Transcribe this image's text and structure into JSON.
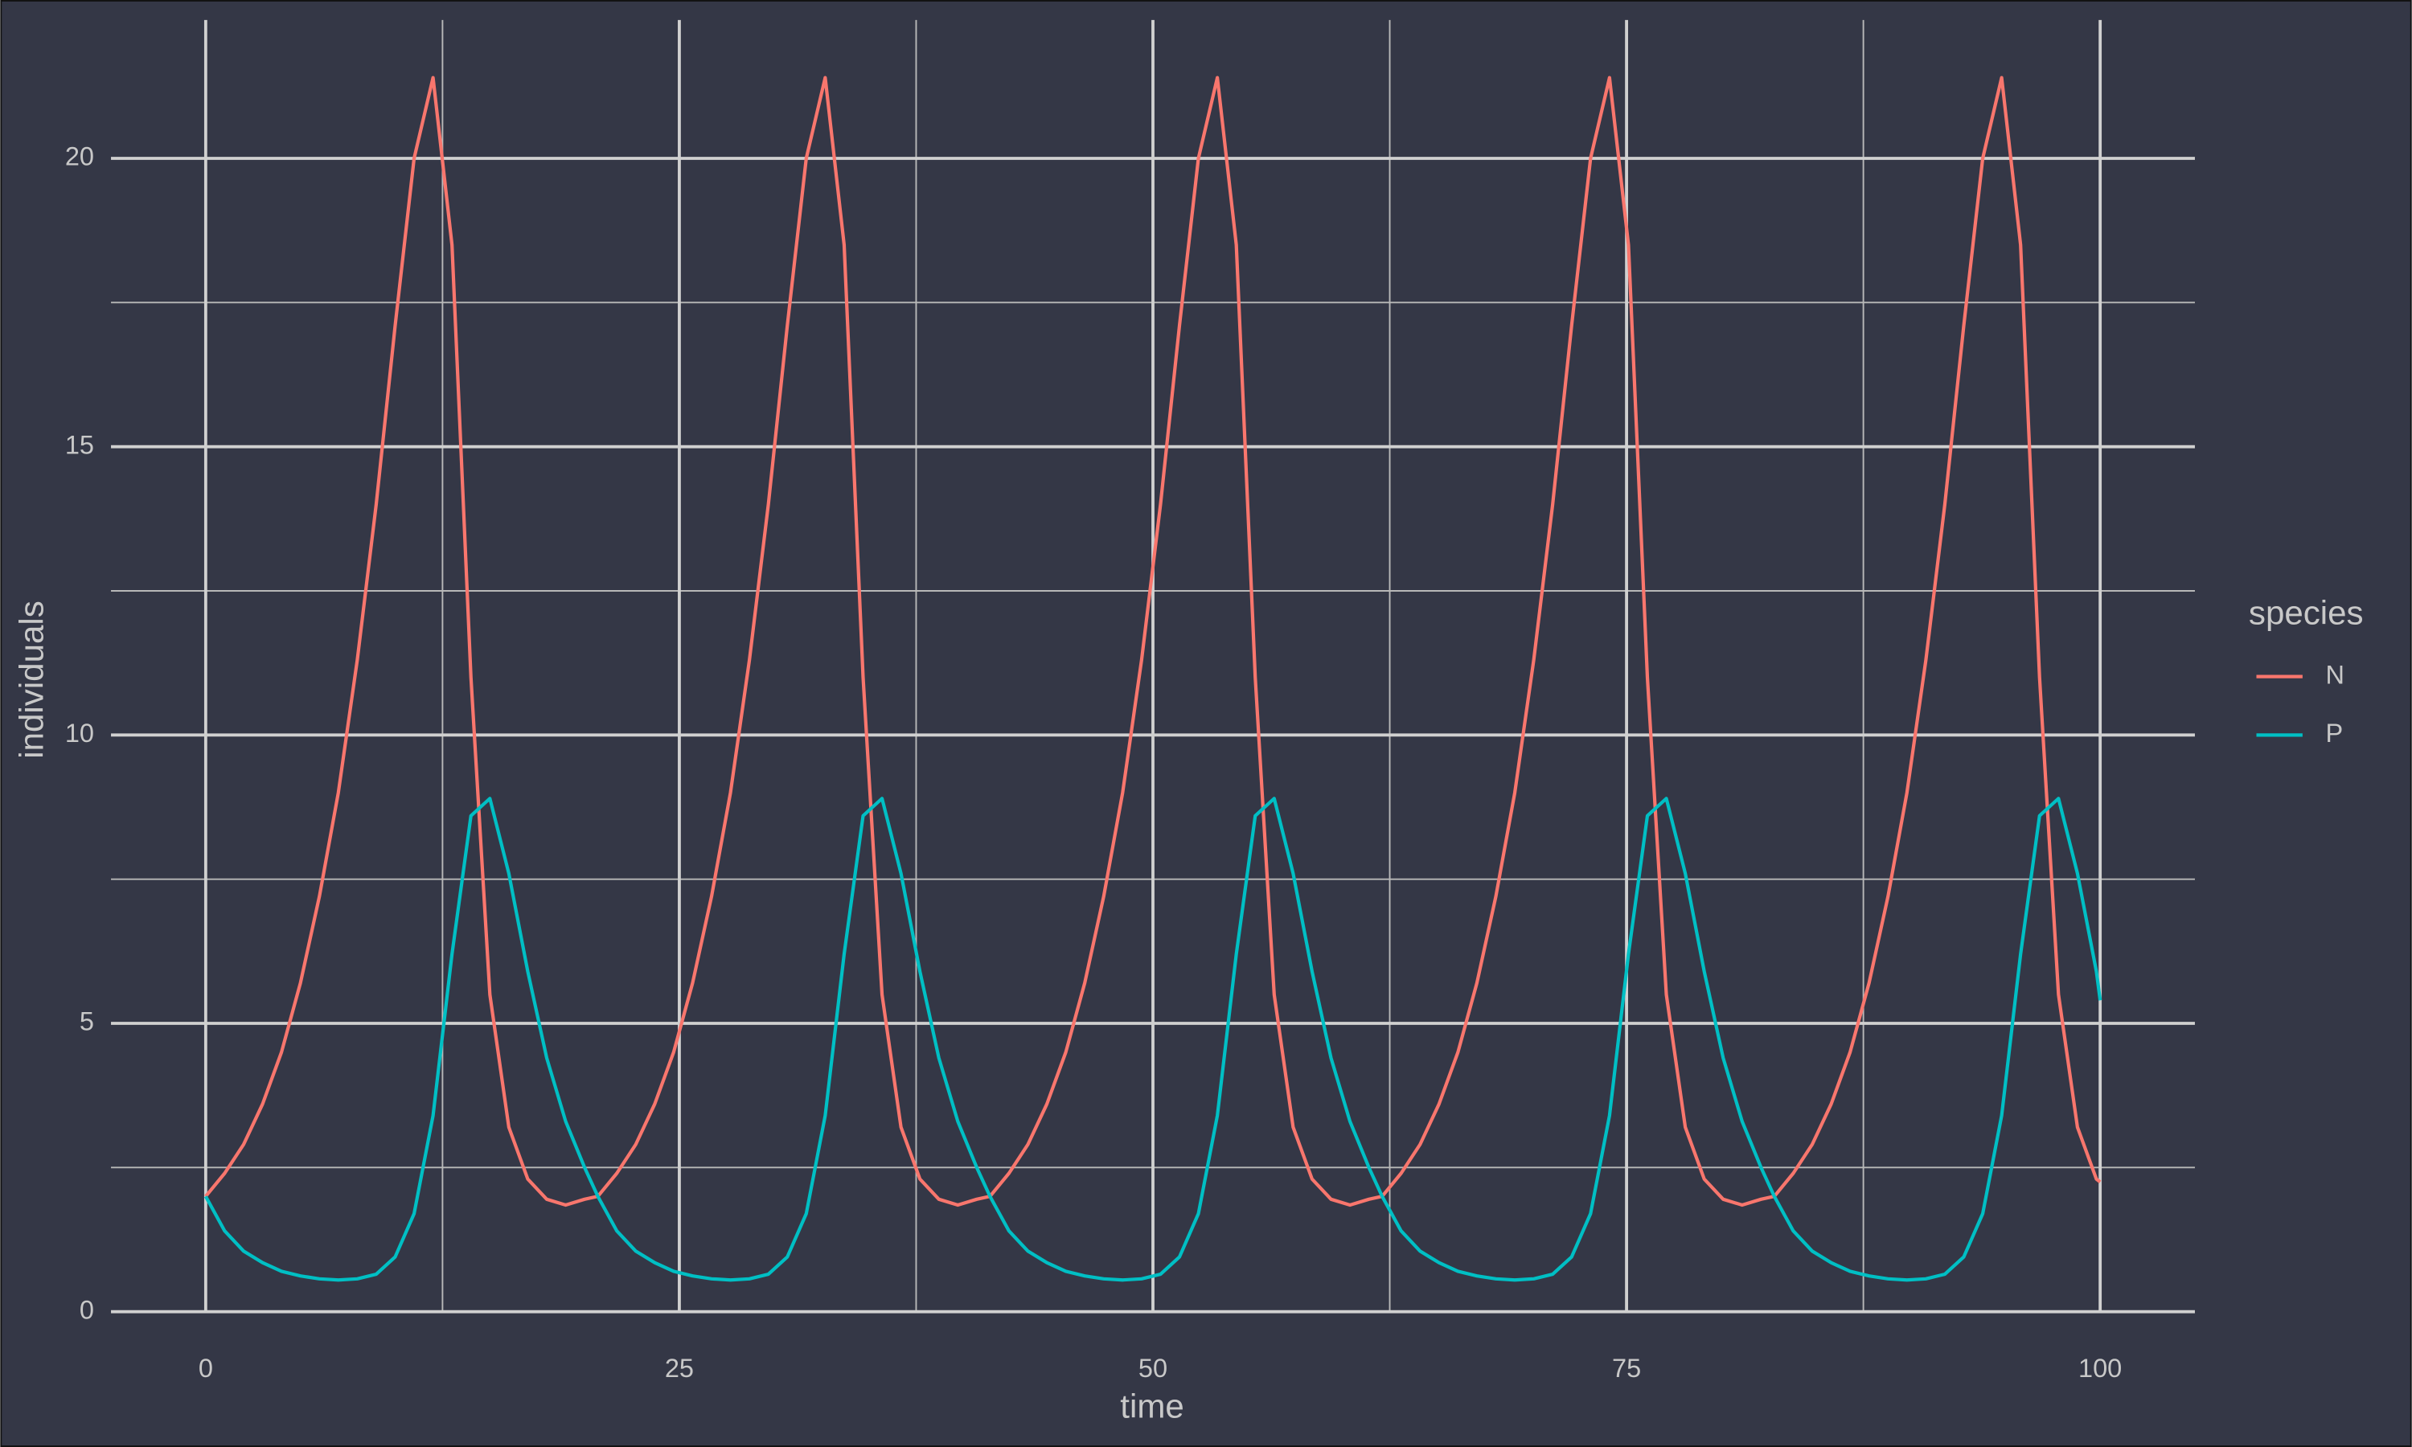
{
  "chart_data": {
    "type": "line",
    "x_label": "time",
    "y_label": "individuals",
    "legend_title": "species",
    "legend_position": "right",
    "x": [
      0,
      1,
      2,
      3,
      4,
      5,
      6,
      7,
      8,
      9,
      10,
      11,
      12,
      13,
      14,
      15,
      16,
      17,
      18,
      19,
      20,
      20.7,
      21.7,
      22.7,
      23.7,
      24.7,
      25.7,
      26.7,
      27.7,
      28.7,
      29.7,
      30.7,
      31.7,
      32.7,
      33.7,
      34.7,
      35.7,
      36.7,
      37.7,
      38.7,
      39.7,
      40.7,
      41.4,
      42.4,
      43.4,
      44.4,
      45.4,
      46.4,
      47.4,
      48.4,
      49.4,
      50.4,
      51.4,
      52.4,
      53.4,
      54.4,
      55.4,
      56.4,
      57.4,
      58.4,
      59.4,
      60.4,
      61.4,
      62.1,
      63.1,
      64.1,
      65.1,
      66.1,
      67.1,
      68.1,
      69.1,
      70.1,
      71.1,
      72.1,
      73.1,
      74.1,
      75.1,
      76.1,
      77.1,
      78.1,
      79.1,
      80.1,
      81.1,
      82.1,
      82.8,
      83.8,
      84.8,
      85.8,
      86.8,
      87.8,
      88.8,
      89.8,
      90.8,
      91.8,
      92.8,
      93.8,
      94.8,
      95.8,
      96.8,
      97.8,
      98.8,
      99.8,
      100
    ],
    "series": [
      {
        "name": "N",
        "color": "#f8766d",
        "values": [
          2.0,
          2.4,
          2.9,
          3.6,
          4.5,
          5.7,
          7.2,
          9.0,
          11.3,
          14.0,
          17.1,
          20.0,
          21.4,
          18.5,
          11.0,
          5.5,
          3.2,
          2.3,
          1.95,
          1.85,
          1.95,
          2.0,
          2.4,
          2.9,
          3.6,
          4.5,
          5.7,
          7.2,
          9.0,
          11.3,
          14.0,
          17.1,
          20.0,
          21.4,
          18.5,
          11.0,
          5.5,
          3.2,
          2.3,
          1.95,
          1.85,
          1.95,
          2.0,
          2.4,
          2.9,
          3.6,
          4.5,
          5.7,
          7.2,
          9.0,
          11.3,
          14.0,
          17.1,
          20.0,
          21.4,
          18.5,
          11.0,
          5.5,
          3.2,
          2.3,
          1.95,
          1.85,
          1.95,
          2.0,
          2.4,
          2.9,
          3.6,
          4.5,
          5.7,
          7.2,
          9.0,
          11.3,
          14.0,
          17.1,
          20.0,
          21.4,
          18.5,
          11.0,
          5.5,
          3.2,
          2.3,
          1.95,
          1.85,
          1.95,
          2.0,
          2.4,
          2.9,
          3.6,
          4.5,
          5.7,
          7.2,
          9.0,
          11.3,
          14.0,
          17.1,
          20.0,
          21.4,
          18.5,
          11.0,
          5.5,
          3.2,
          2.3,
          2.25
        ]
      },
      {
        "name": "P",
        "color": "#00bfc4",
        "values": [
          2.0,
          1.4,
          1.05,
          0.85,
          0.7,
          0.62,
          0.57,
          0.55,
          0.57,
          0.65,
          0.95,
          1.7,
          3.4,
          6.2,
          8.6,
          8.9,
          7.6,
          5.9,
          4.4,
          3.3,
          2.5,
          2.0,
          1.4,
          1.05,
          0.85,
          0.7,
          0.62,
          0.57,
          0.55,
          0.57,
          0.65,
          0.95,
          1.7,
          3.4,
          6.2,
          8.6,
          8.9,
          7.6,
          5.9,
          4.4,
          3.3,
          2.5,
          2.0,
          1.4,
          1.05,
          0.85,
          0.7,
          0.62,
          0.57,
          0.55,
          0.57,
          0.65,
          0.95,
          1.7,
          3.4,
          6.2,
          8.6,
          8.9,
          7.6,
          5.9,
          4.4,
          3.3,
          2.5,
          2.0,
          1.4,
          1.05,
          0.85,
          0.7,
          0.62,
          0.57,
          0.55,
          0.57,
          0.65,
          0.95,
          1.7,
          3.4,
          6.2,
          8.6,
          8.9,
          7.6,
          5.9,
          4.4,
          3.3,
          2.5,
          2.0,
          1.4,
          1.05,
          0.85,
          0.7,
          0.62,
          0.57,
          0.55,
          0.57,
          0.65,
          0.95,
          1.7,
          3.4,
          6.2,
          8.6,
          8.9,
          7.6,
          5.9,
          5.4
        ]
      }
    ],
    "xlim": [
      -5,
      105
    ],
    "xticks": [
      0,
      25,
      50,
      75,
      100
    ],
    "ylim": [
      0,
      22.4
    ],
    "yticks": [
      0,
      5,
      10,
      15,
      20
    ],
    "grid": true,
    "background": "#343746"
  }
}
